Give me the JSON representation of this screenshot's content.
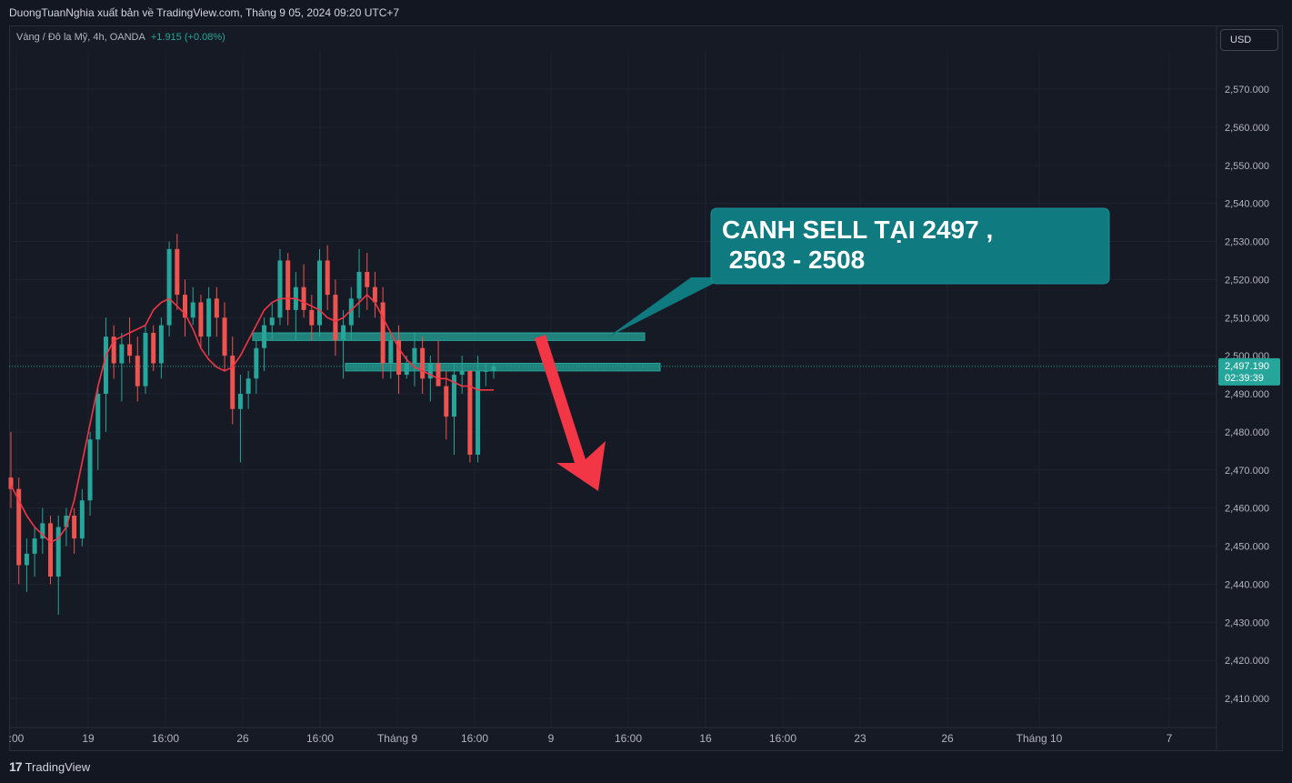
{
  "header": {
    "credit": "DuongTuanNghia xuất bản về TradingView.com, Tháng 9 05, 2024 09:20 UTC+7"
  },
  "legend": {
    "symbol": "Vàng / Đô la Mỹ, 4h, OANDA",
    "change": "+1.915 (+0.08%)"
  },
  "currency_button": "USD",
  "footer": {
    "logo_icon": "17",
    "logo_text": "TradingView"
  },
  "chart_data": {
    "type": "candlestick",
    "instrument": "Vàng / Đô la Mỹ, 4h, OANDA",
    "ylim": [
      2400,
      2580
    ],
    "y_ticks": [
      "2,410.000",
      "2,420.000",
      "2,430.000",
      "2,440.000",
      "2,450.000",
      "2,460.000",
      "2,470.000",
      "2,480.000",
      "2,490.000",
      "2,500.000",
      "2,510.000",
      "2,520.000",
      "2,530.000",
      "2,540.000",
      "2,550.000",
      "2,560.000",
      "2,570.000"
    ],
    "x_ticks": [
      ":00",
      "19",
      "16:00",
      "26",
      "16:00",
      "Tháng 9",
      "16:00",
      "9",
      "16:00",
      "16",
      "16:00",
      "23",
      "26",
      "Tháng 10",
      "7"
    ],
    "last_price": 2497.19,
    "last_price_label": "2,497.190",
    "countdown_label": "02:39:39",
    "candles": [
      [
        2468,
        2480,
        2460,
        2465
      ],
      [
        2465,
        2468,
        2440,
        2445
      ],
      [
        2445,
        2452,
        2438,
        2448
      ],
      [
        2448,
        2455,
        2442,
        2452
      ],
      [
        2452,
        2460,
        2448,
        2456
      ],
      [
        2456,
        2458,
        2440,
        2442
      ],
      [
        2442,
        2458,
        2432,
        2455
      ],
      [
        2455,
        2460,
        2450,
        2458
      ],
      [
        2458,
        2460,
        2448,
        2452
      ],
      [
        2452,
        2465,
        2450,
        2462
      ],
      [
        2462,
        2480,
        2458,
        2478
      ],
      [
        2478,
        2492,
        2470,
        2490
      ],
      [
        2490,
        2510,
        2480,
        2505
      ],
      [
        2505,
        2508,
        2494,
        2498
      ],
      [
        2498,
        2506,
        2488,
        2503
      ],
      [
        2503,
        2510,
        2498,
        2500
      ],
      [
        2500,
        2505,
        2488,
        2492
      ],
      [
        2492,
        2508,
        2490,
        2506
      ],
      [
        2506,
        2508,
        2496,
        2498
      ],
      [
        2498,
        2510,
        2494,
        2508
      ],
      [
        2508,
        2530,
        2505,
        2528
      ],
      [
        2528,
        2532,
        2512,
        2516
      ],
      [
        2516,
        2520,
        2505,
        2510
      ],
      [
        2510,
        2518,
        2508,
        2514
      ],
      [
        2514,
        2516,
        2502,
        2505
      ],
      [
        2505,
        2518,
        2500,
        2515
      ],
      [
        2515,
        2518,
        2505,
        2510
      ],
      [
        2510,
        2514,
        2496,
        2500
      ],
      [
        2500,
        2505,
        2482,
        2486
      ],
      [
        2486,
        2495,
        2472,
        2490
      ],
      [
        2490,
        2496,
        2486,
        2494
      ],
      [
        2494,
        2504,
        2490,
        2502
      ],
      [
        2502,
        2510,
        2496,
        2508
      ],
      [
        2508,
        2514,
        2504,
        2510
      ],
      [
        2510,
        2528,
        2508,
        2525
      ],
      [
        2525,
        2527,
        2508,
        2512
      ],
      [
        2512,
        2522,
        2504,
        2518
      ],
      [
        2518,
        2524,
        2510,
        2512
      ],
      [
        2512,
        2516,
        2504,
        2508
      ],
      [
        2508,
        2528,
        2505,
        2525
      ],
      [
        2525,
        2529,
        2512,
        2516
      ],
      [
        2516,
        2520,
        2500,
        2504
      ],
      [
        2504,
        2512,
        2494,
        2508
      ],
      [
        2508,
        2518,
        2504,
        2515
      ],
      [
        2515,
        2528,
        2510,
        2522
      ],
      [
        2522,
        2527,
        2512,
        2518
      ],
      [
        2518,
        2522,
        2510,
        2514
      ],
      [
        2514,
        2518,
        2494,
        2498
      ],
      [
        2498,
        2506,
        2494,
        2504
      ],
      [
        2504,
        2508,
        2490,
        2495
      ],
      [
        2495,
        2500,
        2494,
        2498
      ],
      [
        2498,
        2506,
        2492,
        2502
      ],
      [
        2502,
        2505,
        2490,
        2494
      ],
      [
        2494,
        2500,
        2488,
        2498
      ],
      [
        2498,
        2504,
        2492,
        2492
      ],
      [
        2492,
        2496,
        2478,
        2484
      ],
      [
        2484,
        2498,
        2474,
        2495
      ],
      [
        2495,
        2500,
        2490,
        2496
      ],
      [
        2496,
        2496,
        2472,
        2474
      ],
      [
        2474,
        2500,
        2472,
        2496
      ],
      [
        2496,
        2498,
        2492,
        2496
      ],
      [
        2496,
        2498,
        2494,
        2497.19
      ]
    ],
    "ma_line": [
      2466,
      2462,
      2458,
      2455,
      2453,
      2451,
      2452,
      2455,
      2462,
      2472,
      2482,
      2492,
      2500,
      2504,
      2505,
      2506,
      2507,
      2508,
      2512,
      2514,
      2515,
      2513,
      2511,
      2507,
      2502,
      2499,
      2497,
      2496,
      2497,
      2500,
      2504,
      2508,
      2512,
      2514,
      2515,
      2515,
      2515,
      2514,
      2513,
      2512,
      2510,
      2509,
      2510,
      2512,
      2514,
      2516,
      2514,
      2510,
      2506,
      2502,
      2499,
      2497,
      2496,
      2495,
      2494,
      2494,
      2493,
      2492,
      2492,
      2491,
      2491,
      2491
    ],
    "annotations": {
      "callout_text_line1": "CANH SELL TẠI 2497 ,",
      "callout_text_line2": " 2503 - 2508",
      "zones": [
        {
          "low": 2504,
          "high": 2506
        },
        {
          "low": 2496,
          "high": 2498
        }
      ],
      "arrow": "red arrow pointing down"
    },
    "colors": {
      "up": "#26a69a",
      "down": "#ef5350",
      "ma": "#f23645",
      "zone": "#26a69a",
      "callout": "#0f7a80",
      "arrow": "#f23645",
      "background": "#161a25"
    }
  }
}
